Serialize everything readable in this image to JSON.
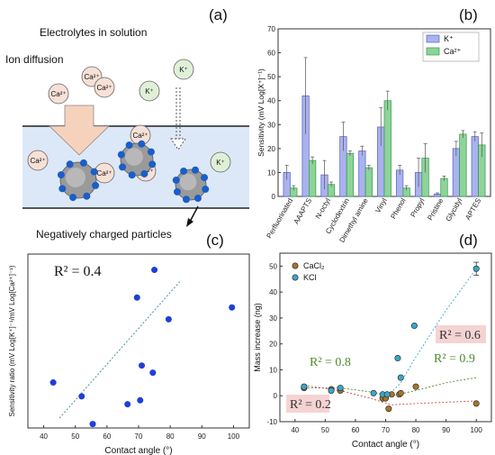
{
  "panel_a": {
    "letter": "(a)",
    "label_electrolytes": "Electrolytes in solution",
    "label_diffusion": "Ion diffusion",
    "label_particles": "Negatively charged particles",
    "ion_ca": "Ca²⁺",
    "ion_k": "K⁺"
  },
  "colors": {
    "k_bar": "#aab2ee",
    "ca_bar": "#8ed39a",
    "blue_point": "#1f3fd6",
    "cacl2_point": "#a3762a",
    "kcl_point": "#3aa6c9",
    "green_text": "#4c8a2b",
    "red_highlight": "#f6d3d3",
    "blue_box": "#dce8f7",
    "ion_ca_fill": "#f7e0d6",
    "ion_k_fill": "#dff0d6",
    "arrow_fill": "#f6d2bd"
  },
  "chart_data": [
    {
      "panel": "(b)",
      "type": "bar",
      "ylabel": "Sensitivity (mV Log[X⁺]⁻¹)",
      "ylim": [
        0,
        70
      ],
      "yticks": [
        0,
        10,
        20,
        30,
        40,
        50,
        60,
        70
      ],
      "categories": [
        "Perfluorinated",
        "AAAPTS",
        "N-octyl",
        "Cyclodextrin",
        "Dimethyl amine",
        "Vinyl",
        "Phenol",
        "Propyl",
        "Pristine",
        "Glycidyl",
        "APTES"
      ],
      "series": [
        {
          "name": "K⁺",
          "values": [
            10,
            42,
            9,
            25,
            19,
            29,
            11,
            10,
            1,
            20,
            25
          ],
          "errors": [
            3,
            16,
            6,
            6,
            2,
            8,
            2,
            6,
            0.5,
            3,
            2
          ]
        },
        {
          "name": "Ca²⁺",
          "values": [
            3.5,
            15,
            5,
            18,
            12,
            40,
            3.5,
            16,
            7.5,
            26,
            21.5
          ],
          "errors": [
            1,
            1.5,
            1,
            1,
            1,
            4,
            1,
            6,
            1,
            1.5,
            5
          ]
        }
      ],
      "legend": "top-right"
    },
    {
      "panel": "(c)",
      "type": "scatter",
      "xlabel": "Contact angle (°)",
      "ylabel": "Sensitivity ratio (mV Log[K⁺]⁻¹/mV Log[Ca²⁺]⁻¹)",
      "xlim": [
        35,
        105
      ],
      "xticks": [
        40,
        50,
        60,
        70,
        80,
        90,
        100
      ],
      "ylim": [
        0,
        4.4
      ],
      "points": [
        [
          43,
          1.15
        ],
        [
          52,
          0.8
        ],
        [
          55.5,
          0.1
        ],
        [
          66.5,
          0.6
        ],
        [
          69.5,
          3.3
        ],
        [
          70.5,
          0.7
        ],
        [
          71,
          1.58
        ],
        [
          74.5,
          1.4
        ],
        [
          75,
          4
        ],
        [
          79.5,
          2.75
        ],
        [
          99.5,
          3.05
        ]
      ],
      "annotation": "R² = 0.4"
    },
    {
      "panel": "(d)",
      "type": "scatter",
      "xlabel": "Contact angle (°)",
      "ylabel": "Mass increase (ng)",
      "xlim": [
        35,
        105
      ],
      "xticks": [
        40,
        50,
        60,
        70,
        80,
        90,
        100
      ],
      "ylim": [
        -10,
        55
      ],
      "yticks": [
        -10,
        0,
        10,
        20,
        30,
        40,
        50
      ],
      "series": [
        {
          "name": "CaCl₂",
          "points": [
            [
              43,
              3
            ],
            [
              52,
              2.5
            ],
            [
              55,
              2
            ],
            [
              69,
              -1
            ],
            [
              70,
              -1
            ],
            [
              71,
              -5
            ],
            [
              72,
              0.5
            ],
            [
              74.5,
              0.5
            ],
            [
              75,
              1
            ],
            [
              80,
              3.5
            ],
            [
              100,
              -3
            ]
          ]
        },
        {
          "name": "KCl",
          "points": [
            [
              43,
              3.5
            ],
            [
              52,
              2
            ],
            [
              55,
              3
            ],
            [
              66,
              1
            ],
            [
              69,
              0.5
            ],
            [
              70.5,
              0.5
            ],
            [
              74,
              14.5
            ],
            [
              75,
              7
            ],
            [
              79.5,
              27
            ],
            [
              100,
              49
            ]
          ],
          "errors": [
            0,
            0,
            0,
            0,
            0,
            0,
            0,
            0,
            0,
            2.5
          ]
        }
      ],
      "annotations": [
        "R² = 0.8",
        "R² = 0.9",
        "R² = 0.6",
        "R² = 0.2"
      ],
      "legend": "top-left"
    }
  ]
}
